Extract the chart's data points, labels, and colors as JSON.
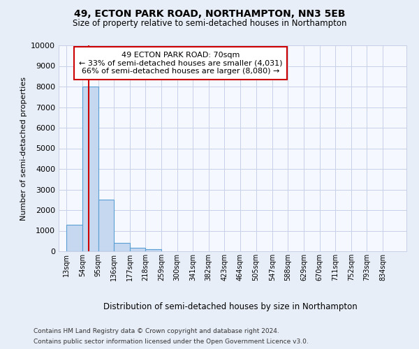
{
  "title1": "49, ECTON PARK ROAD, NORTHAMPTON, NN3 5EB",
  "title2": "Size of property relative to semi-detached houses in Northampton",
  "xlabel": "Distribution of semi-detached houses by size in Northampton",
  "ylabel": "Number of semi-detached properties",
  "footer1": "Contains HM Land Registry data © Crown copyright and database right 2024.",
  "footer2": "Contains public sector information licensed under the Open Government Licence v3.0.",
  "annotation_line1": "49 ECTON PARK ROAD: 70sqm",
  "annotation_line2": "← 33% of semi-detached houses are smaller (4,031)",
  "annotation_line3": "66% of semi-detached houses are larger (8,080) →",
  "bar_labels": [
    "13sqm",
    "54sqm",
    "95sqm",
    "136sqm",
    "177sqm",
    "218sqm",
    "259sqm",
    "300sqm",
    "341sqm",
    "382sqm",
    "423sqm",
    "464sqm",
    "505sqm",
    "547sqm",
    "588sqm",
    "629sqm",
    "670sqm",
    "711sqm",
    "752sqm",
    "793sqm",
    "834sqm"
  ],
  "bar_values": [
    1300,
    8000,
    2500,
    400,
    175,
    100,
    0,
    0,
    0,
    0,
    0,
    0,
    0,
    0,
    0,
    0,
    0,
    0,
    0,
    0,
    0
  ],
  "bar_edges": [
    13,
    54,
    95,
    136,
    177,
    218,
    259,
    300,
    341,
    382,
    423,
    464,
    505,
    547,
    588,
    629,
    670,
    711,
    752,
    793,
    834
  ],
  "bar_color": "#c5d8f0",
  "bar_edge_color": "#5a9fd4",
  "red_line_x": 70,
  "ylim": [
    0,
    10000
  ],
  "yticks": [
    0,
    1000,
    2000,
    3000,
    4000,
    5000,
    6000,
    7000,
    8000,
    9000,
    10000
  ],
  "bg_color": "#e8eef8",
  "plot_bg_color": "#f5f8ff",
  "grid_color": "#c8d0e8",
  "annotation_box_color": "#ffffff",
  "annotation_border_color": "#cc0000",
  "red_line_color": "#cc0000"
}
